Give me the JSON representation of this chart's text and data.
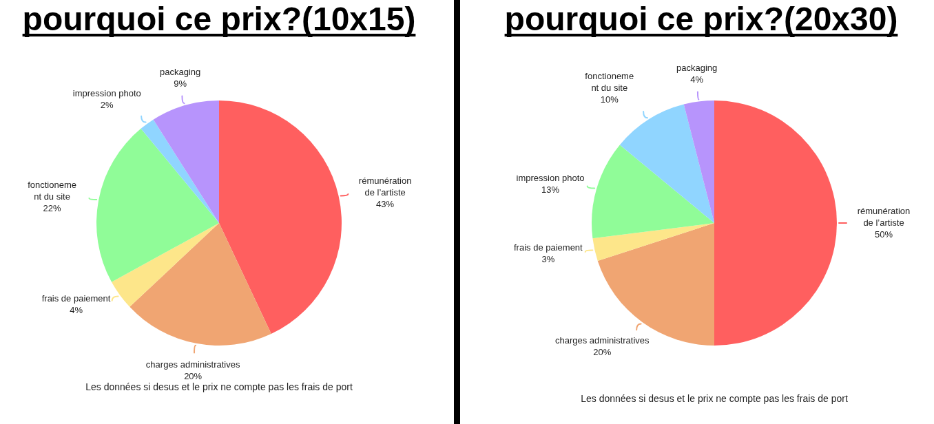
{
  "chart_data": [
    {
      "type": "pie",
      "title": "pourquoi ce prix?(10x15)",
      "categories": [
        "rémunération\nde l’artiste",
        "charges administratives",
        "frais de paiement",
        "fonctioneme\nnt du site",
        "impression photo",
        "packaging"
      ],
      "values": [
        43,
        20,
        4,
        22,
        2,
        9
      ],
      "value_labels": [
        "43%",
        "20%",
        "4%",
        "22%",
        "2%",
        "9%"
      ],
      "colors": [
        "#ff5f5f",
        "#f0a572",
        "#fde68a",
        "#90fc98",
        "#90d5ff",
        "#b794fc"
      ],
      "annotations": [
        "Les données si desus et le prix ne compte pas les frais de port"
      ]
    },
    {
      "type": "pie",
      "title": "pourquoi ce prix?(20x30)",
      "categories": [
        "rémunération\nde l’artiste",
        "charges administratives",
        "frais de paiement",
        "impression photo",
        "fonctioneme\nnt du site",
        "packaging"
      ],
      "values": [
        50,
        20,
        3,
        13,
        10,
        4
      ],
      "value_labels": [
        "50%",
        "20%",
        "3%",
        "13%",
        "10%",
        "4%"
      ],
      "colors": [
        "#ff5f5f",
        "#f0a572",
        "#fde68a",
        "#90fc98",
        "#90d5ff",
        "#b794fc"
      ],
      "annotations": [
        "Les données si desus et le prix ne compte pas les frais de port"
      ]
    }
  ]
}
